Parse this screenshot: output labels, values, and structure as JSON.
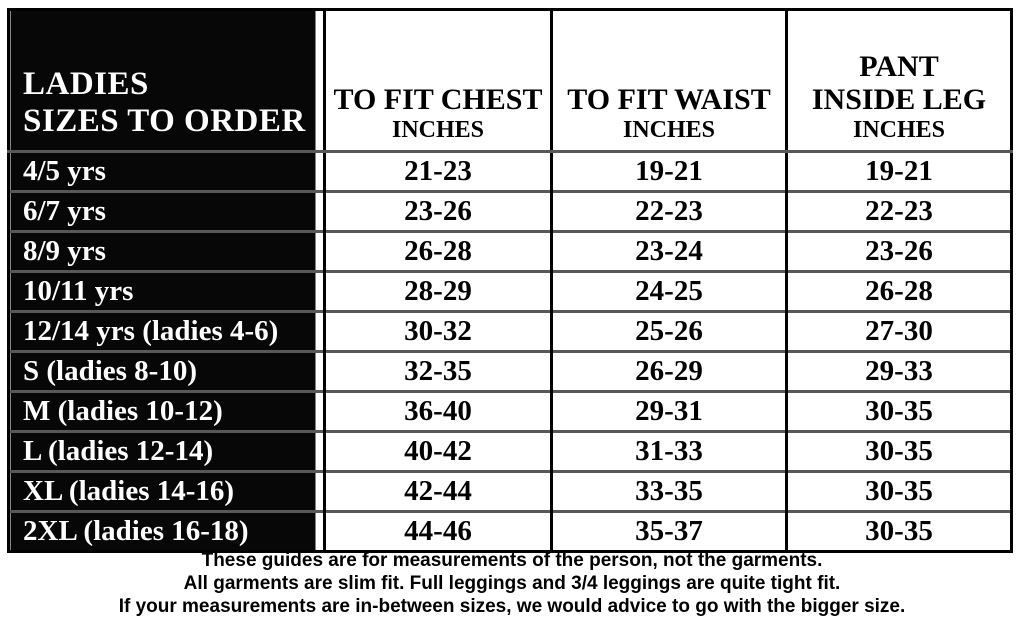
{
  "table": {
    "header": {
      "title_line1": "LADIES",
      "title_line2": "SIZES TO ORDER",
      "chest_title": "TO FIT CHEST",
      "chest_unit": "INCHES",
      "waist_title": "TO FIT WAIST",
      "waist_unit": "INCHES",
      "pant_line1": "PANT",
      "pant_line2": "INSIDE LEG",
      "pant_unit": "INCHES"
    },
    "rows": [
      {
        "size": "4/5 yrs",
        "chest": "21-23",
        "waist": "19-21",
        "leg": "19-21"
      },
      {
        "size": "6/7 yrs",
        "chest": "23-26",
        "waist": "22-23",
        "leg": "22-23"
      },
      {
        "size": "8/9 yrs",
        "chest": "26-28",
        "waist": "23-24",
        "leg": "23-26"
      },
      {
        "size": "10/11 yrs",
        "chest": "28-29",
        "waist": "24-25",
        "leg": "26-28"
      },
      {
        "size": "12/14 yrs (ladies 4-6)",
        "chest": "30-32",
        "waist": "25-26",
        "leg": "27-30"
      },
      {
        "size": "S (ladies 8-10)",
        "chest": "32-35",
        "waist": "26-29",
        "leg": "29-33"
      },
      {
        "size": "M (ladies 10-12)",
        "chest": "36-40",
        "waist": "29-31",
        "leg": "30-35"
      },
      {
        "size": "L (ladies 12-14)",
        "chest": "40-42",
        "waist": "31-33",
        "leg": "30-35"
      },
      {
        "size": "XL (ladies 14-16)",
        "chest": "42-44",
        "waist": "33-35",
        "leg": "30-35"
      },
      {
        "size": "2XL (ladies 16-18)",
        "chest": "44-46",
        "waist": "35-37",
        "leg": "30-35"
      }
    ]
  },
  "footer": {
    "line1": "These guides are for measurements of the person, not the garments.",
    "line2": "All garments are slim fit. Full leggings and 3/4 leggings are quite tight fit.",
    "line3": "If your measurements are in-between sizes, we would advice to go with the bigger size."
  },
  "colors": {
    "header_bg": "#070707",
    "header_text": "#ffffff",
    "grid_border": "#000000",
    "row_separator": "#585858",
    "body_text": "#000000",
    "page_bg": "#ffffff"
  }
}
